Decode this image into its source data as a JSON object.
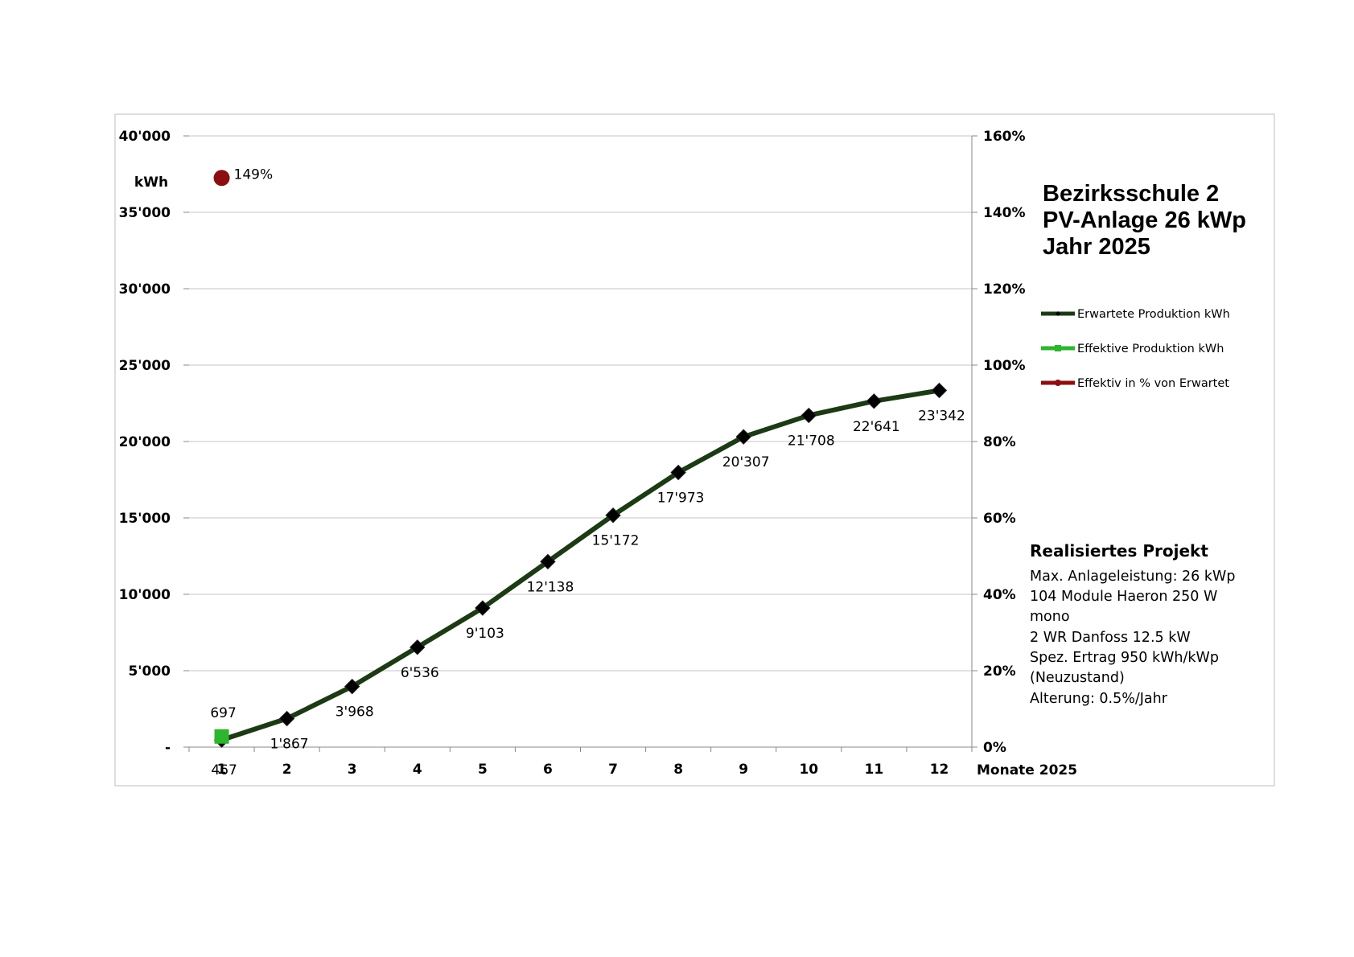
{
  "chart_data": {
    "type": "line",
    "title": [
      "Bezirksschule 2",
      "PV-Anlage 26 kWp",
      "Jahr 2025"
    ],
    "xlabel": "Monate 2025",
    "ylabel": "kWh",
    "categories": [
      "1",
      "2",
      "3",
      "4",
      "5",
      "6",
      "7",
      "8",
      "9",
      "10",
      "11",
      "12"
    ],
    "ylim": [
      0,
      40000
    ],
    "y2lim": [
      0,
      160
    ],
    "y_ticks": [
      "-",
      "5'000",
      "10'000",
      "15'000",
      "20'000",
      "25'000",
      "30'000",
      "35'000",
      "40'000"
    ],
    "y2_ticks": [
      "0%",
      "20%",
      "40%",
      "60%",
      "80%",
      "100%",
      "120%",
      "140%",
      "160%"
    ],
    "grid": true,
    "legend_position": "right",
    "series": [
      {
        "name": "Erwartete Produktion kWh",
        "axis": "left",
        "color": "#1c3a14",
        "marker": "diamond",
        "values": [
          467,
          1867,
          3968,
          6536,
          9103,
          12138,
          15172,
          17973,
          20307,
          21708,
          22641,
          23342
        ],
        "labels": [
          "467",
          "1'867",
          "3'968",
          "6'536",
          "9'103",
          "12'138",
          "15'172",
          "17'973",
          "20'307",
          "21'708",
          "22'641",
          "23'342"
        ]
      },
      {
        "name": "Effektive Produktion kWh",
        "axis": "left",
        "color": "#2db52d",
        "marker": "square",
        "values": [
          697,
          null,
          null,
          null,
          null,
          null,
          null,
          null,
          null,
          null,
          null,
          null
        ],
        "labels": [
          "697",
          "",
          "",
          "",
          "",
          "",
          "",
          "",
          "",
          "",
          "",
          ""
        ]
      },
      {
        "name": "Effektiv in % von Erwartet",
        "axis": "right",
        "color": "#8b0f0f",
        "marker": "circle",
        "values": [
          149,
          null,
          null,
          null,
          null,
          null,
          null,
          null,
          null,
          null,
          null,
          null
        ],
        "labels": [
          "149%",
          "",
          "",
          "",
          "",
          "",
          "",
          "",
          "",
          "",
          "",
          ""
        ]
      }
    ]
  },
  "info": {
    "heading": "Realisiertes Projekt",
    "lines": [
      "Max. Anlageleistung: 26 kWp",
      "104 Module Haeron 250 W",
      "mono",
      "2 WR Danfoss 12.5 kW",
      "Spez. Ertrag 950 kWh/kWp",
      "(Neuzustand)",
      "Alterung: 0.5%/Jahr"
    ]
  }
}
